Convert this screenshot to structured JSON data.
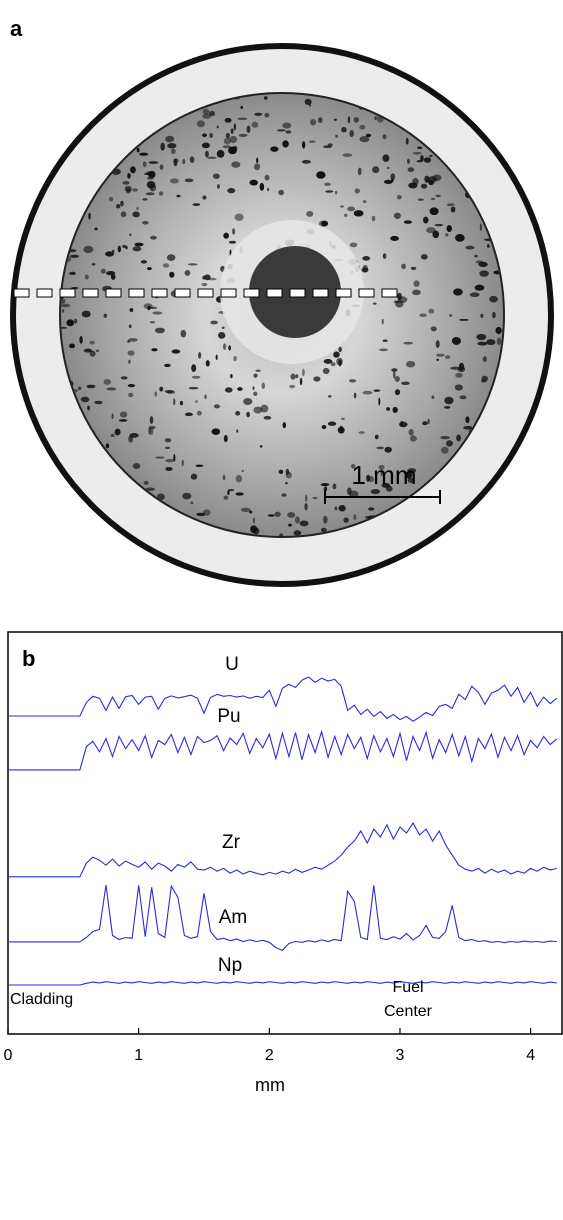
{
  "panel_a": {
    "label": "a",
    "scale_bar": "1 mm"
  },
  "chart_data": {
    "type": "line",
    "panel_label": "b",
    "xlabel": "mm",
    "xlim": [
      0,
      4.24
    ],
    "xticks": [
      0,
      1,
      2,
      3,
      4
    ],
    "ylim": [
      0,
      100
    ],
    "annotations": [
      "Cladding",
      "Fuel",
      "Center"
    ],
    "x": [
      0,
      0.05,
      0.1,
      0.15,
      0.2,
      0.25,
      0.3,
      0.35,
      0.4,
      0.45,
      0.5,
      0.55,
      0.6,
      0.65,
      0.7,
      0.75,
      0.8,
      0.85,
      0.9,
      0.95,
      1,
      1.05,
      1.1,
      1.15,
      1.2,
      1.25,
      1.3,
      1.35,
      1.4,
      1.45,
      1.5,
      1.55,
      1.6,
      1.65,
      1.7,
      1.75,
      1.8,
      1.85,
      1.9,
      1.95,
      2,
      2.05,
      2.1,
      2.15,
      2.2,
      2.25,
      2.3,
      2.35,
      2.4,
      2.45,
      2.5,
      2.55,
      2.6,
      2.65,
      2.7,
      2.75,
      2.8,
      2.85,
      2.9,
      2.95,
      3,
      3.05,
      3.1,
      3.15,
      3.2,
      3.25,
      3.3,
      3.35,
      3.4,
      3.45,
      3.5,
      3.55,
      3.6,
      3.65,
      3.7,
      3.75,
      3.8,
      3.85,
      3.9,
      3.95,
      4,
      4.05,
      4.1,
      4.15,
      4.2
    ],
    "series": [
      {
        "name": "U",
        "color": "#2b2bd9",
        "values": [
          79.1,
          79.1,
          79.1,
          79.1,
          79.1,
          79.1,
          79.1,
          79.1,
          79.1,
          79.1,
          79.1,
          79.1,
          82.5,
          84.0,
          83.5,
          80.5,
          83.8,
          81.0,
          83.9,
          84.2,
          82.0,
          83.8,
          84.0,
          80.8,
          83.5,
          84.1,
          83.6,
          83.9,
          84.3,
          83.5,
          79.8,
          83.7,
          84.5,
          84.0,
          84.2,
          83.8,
          84.1,
          83.5,
          84.0,
          83.7,
          85.5,
          81.5,
          86.0,
          87.0,
          86.2,
          88.0,
          88.8,
          87.5,
          88.5,
          87.8,
          88.2,
          86.5,
          80.5,
          81.8,
          79.5,
          80.8,
          79.0,
          80.2,
          78.5,
          79.5,
          78.2,
          79.0,
          77.8,
          78.8,
          80.0,
          79.2,
          81.5,
          82.0,
          81.0,
          84.5,
          83.2,
          86.5,
          85.0,
          82.0,
          84.8,
          85.5,
          86.8,
          84.0,
          86.2,
          82.5,
          85.0,
          81.5,
          83.8,
          82.2,
          83.5
        ]
      },
      {
        "name": "Pu",
        "color": "#2b2bd9",
        "values": [
          65.7,
          65.7,
          65.7,
          65.7,
          65.7,
          65.7,
          65.7,
          65.7,
          65.7,
          65.7,
          65.7,
          65.7,
          71.5,
          72.8,
          70.2,
          73.5,
          69.0,
          74.0,
          71.0,
          73.2,
          70.5,
          74.2,
          68.8,
          73.0,
          72.0,
          74.5,
          70.0,
          73.8,
          69.5,
          74.0,
          72.5,
          73.0,
          74.2,
          70.5,
          73.6,
          72.0,
          74.8,
          69.8,
          73.5,
          71.2,
          74.6,
          68.5,
          74.8,
          69.0,
          75.0,
          68.2,
          74.5,
          70.0,
          75.2,
          68.8,
          74.0,
          69.5,
          74.5,
          71.0,
          73.8,
          68.5,
          74.2,
          70.2,
          73.5,
          69.0,
          74.8,
          68.0,
          74.0,
          70.5,
          75.0,
          68.6,
          73.2,
          70.0,
          74.5,
          69.2,
          74.0,
          67.8,
          73.5,
          71.0,
          74.6,
          68.8,
          73.8,
          70.5,
          74.2,
          69.5,
          73.0,
          71.2,
          74.0,
          72.0,
          73.4
        ]
      },
      {
        "name": "Zr",
        "color": "#2b2bd9",
        "values": [
          39.1,
          39.1,
          39.1,
          39.1,
          39.1,
          39.1,
          39.1,
          39.1,
          39.1,
          39.1,
          39.1,
          39.1,
          42.5,
          44.0,
          43.2,
          42.0,
          43.5,
          41.8,
          43.0,
          42.2,
          41.5,
          42.8,
          41.0,
          42.5,
          41.8,
          40.5,
          42.2,
          41.5,
          42.8,
          41.0,
          40.8,
          41.5,
          40.5,
          41.2,
          40.0,
          40.8,
          39.8,
          40.5,
          40.0,
          39.6,
          40.2,
          39.8,
          40.5,
          40.0,
          41.0,
          40.2,
          40.8,
          41.5,
          41.0,
          42.0,
          43.0,
          44.5,
          46.5,
          48.0,
          50.5,
          47.5,
          51.0,
          49.0,
          52.0,
          48.5,
          51.5,
          50.0,
          52.5,
          49.5,
          51.0,
          48.0,
          50.5,
          47.0,
          44.5,
          42.0,
          41.0,
          40.5,
          41.2,
          40.0,
          41.0,
          40.2,
          40.8,
          39.8,
          40.5,
          40.0,
          41.2,
          40.5,
          41.5,
          40.8,
          41.2
        ]
      },
      {
        "name": "Am",
        "color": "#2b2bd9",
        "values": [
          22.9,
          22.9,
          22.9,
          22.9,
          22.9,
          22.9,
          22.9,
          22.9,
          22.9,
          22.9,
          22.9,
          22.9,
          24.0,
          25.5,
          26.0,
          37.1,
          24.5,
          23.5,
          24.0,
          23.8,
          37.0,
          24.2,
          36.5,
          25.0,
          24.0,
          36.8,
          34.0,
          24.5,
          23.8,
          24.2,
          35.0,
          25.5,
          23.5,
          23.8,
          23.2,
          23.6,
          23.0,
          23.4,
          23.0,
          23.3,
          22.8,
          21.5,
          20.8,
          22.5,
          23.0,
          22.8,
          23.2,
          22.9,
          23.4,
          23.0,
          23.5,
          23.2,
          35.5,
          33.0,
          24.0,
          23.5,
          37.0,
          23.8,
          23.5,
          24.2,
          23.6,
          25.0,
          23.4,
          24.5,
          27.0,
          24.0,
          23.8,
          25.5,
          32.0,
          24.0,
          23.2,
          23.5,
          23.0,
          23.2,
          22.8,
          23.0,
          22.7,
          23.0,
          22.8,
          23.1,
          22.9,
          23.0,
          22.8,
          23.1,
          23.0
        ]
      },
      {
        "name": "Np",
        "color": "#2b2bd9",
        "values": [
          12.2,
          12.2,
          12.2,
          12.2,
          12.2,
          12.2,
          12.2,
          12.2,
          12.2,
          12.2,
          12.2,
          12.2,
          12.6,
          12.9,
          12.7,
          13.0,
          12.8,
          12.6,
          12.9,
          12.7,
          13.0,
          12.8,
          12.6,
          12.9,
          12.7,
          13.0,
          12.8,
          12.6,
          12.9,
          12.7,
          13.0,
          12.8,
          12.6,
          12.9,
          12.7,
          13.0,
          12.8,
          12.6,
          12.9,
          12.7,
          13.0,
          12.8,
          12.6,
          12.9,
          12.7,
          13.0,
          12.8,
          12.6,
          12.9,
          12.7,
          13.0,
          12.8,
          12.6,
          12.9,
          12.7,
          13.0,
          12.8,
          12.6,
          12.9,
          12.7,
          13.0,
          12.8,
          12.6,
          12.9,
          12.7,
          13.0,
          12.8,
          12.6,
          12.9,
          12.7,
          13.0,
          12.8,
          12.6,
          12.9,
          12.7,
          13.0,
          12.8,
          12.6,
          12.9,
          12.7,
          13.0,
          12.8,
          12.6,
          12.9,
          12.7
        ]
      }
    ]
  }
}
